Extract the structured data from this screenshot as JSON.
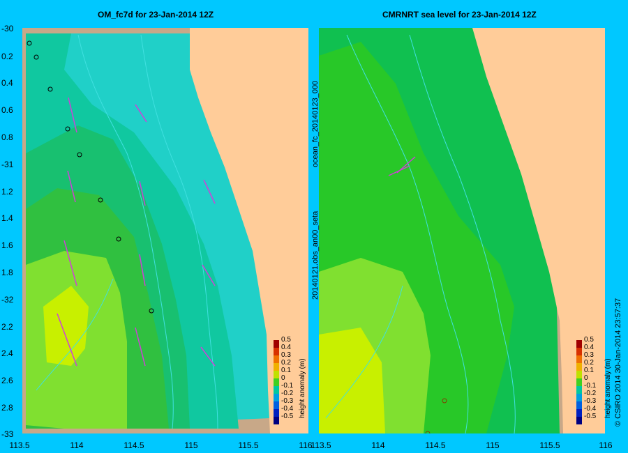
{
  "colors": {
    "background": "#00c8ff",
    "land": "#ffcc99",
    "shelf": "#c8a888",
    "arrow": "#d040d8",
    "contour": "#40e0e0"
  },
  "left_panel": {
    "title": "OM_fc7d for 23-Jan-2014 12Z"
  },
  "right_panel": {
    "title": "CMRNRT sea level  for 23-Jan-2014 12Z",
    "side_label_top": "ocean_fc_20140123_000",
    "side_label_bottom": "20140121.obs_an00_seta"
  },
  "y_axis_labels": [
    "-30",
    "0.2",
    "0.4",
    "0.6",
    "0.8",
    "-31",
    "1.2",
    "1.4",
    "1.6",
    "1.8",
    "-32",
    "2.2",
    "2.4",
    "2.6",
    "2.8",
    "-33"
  ],
  "x_axis_labels_left": [
    "113.5",
    "114",
    "114.5",
    "115",
    "115.5",
    "116"
  ],
  "x_axis_labels_right": [
    "113.5",
    "114",
    "114.5",
    "115",
    "115.5",
    "116"
  ],
  "colorbar": {
    "label": "height anomaly (m)",
    "ticks": [
      "0.5",
      "0.4",
      "0.3",
      "0.2",
      "0.1",
      "0",
      "-0.1",
      "-0.2",
      "-0.3",
      "-0.4",
      "-0.5"
    ],
    "colors": [
      "#a00000",
      "#d83000",
      "#f07000",
      "#f0b000",
      "#c0e000",
      "#40d020",
      "#00c8a0",
      "#00a0e0",
      "#0060e0",
      "#0020c0",
      "#000080"
    ]
  },
  "copyright": "© CSIRO 2014   30-Jan-2014 23:57:37"
}
